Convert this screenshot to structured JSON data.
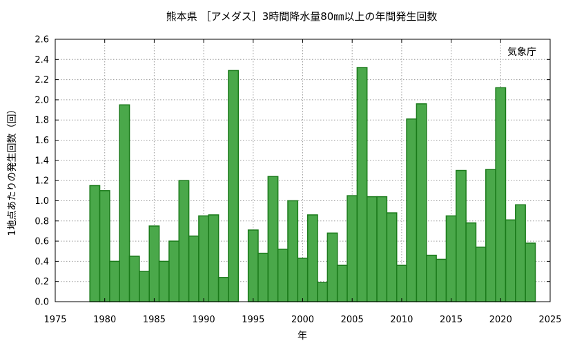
{
  "chart_data": {
    "type": "bar",
    "title": "熊本県 ［アメダス］3時間降水量80㎜以上の年間発生回数",
    "xlabel": "年",
    "ylabel": "1地点あたりの発生回数（回）",
    "source_label": "気象庁",
    "xlim": [
      1975,
      2025
    ],
    "ylim": [
      0,
      2.6
    ],
    "x_ticks": [
      "1975",
      "1980",
      "1985",
      "1990",
      "1995",
      "2000",
      "2005",
      "2010",
      "2015",
      "2020",
      "2025"
    ],
    "y_ticks": [
      "0.0",
      "0.2",
      "0.4",
      "0.6",
      "0.8",
      "1.0",
      "1.2",
      "1.4",
      "1.6",
      "1.8",
      "2.0",
      "2.2",
      "2.4",
      "2.6"
    ],
    "grid": true,
    "bar_fill": "#4aa84a",
    "bar_stroke": "#1a7a1a",
    "years": [
      1979,
      1980,
      1981,
      1982,
      1983,
      1984,
      1985,
      1986,
      1987,
      1988,
      1989,
      1990,
      1991,
      1992,
      1993,
      1994,
      1995,
      1996,
      1997,
      1998,
      1999,
      2000,
      2001,
      2002,
      2003,
      2004,
      2005,
      2006,
      2007,
      2008,
      2009,
      2010,
      2011,
      2012,
      2013,
      2014,
      2015,
      2016,
      2017,
      2018,
      2019,
      2020,
      2021,
      2022,
      2023
    ],
    "values": [
      1.15,
      1.1,
      0.4,
      1.95,
      0.45,
      0.3,
      0.75,
      0.4,
      0.6,
      1.2,
      0.65,
      0.85,
      0.86,
      0.24,
      2.29,
      0.0,
      0.71,
      0.48,
      1.24,
      0.52,
      1.0,
      0.43,
      0.86,
      0.19,
      0.68,
      0.36,
      1.05,
      2.32,
      1.04,
      1.04,
      0.88,
      0.36,
      1.81,
      1.96,
      0.46,
      0.42,
      0.85,
      1.3,
      0.78,
      0.54,
      1.31,
      2.12,
      0.81,
      0.96,
      0.58
    ]
  }
}
